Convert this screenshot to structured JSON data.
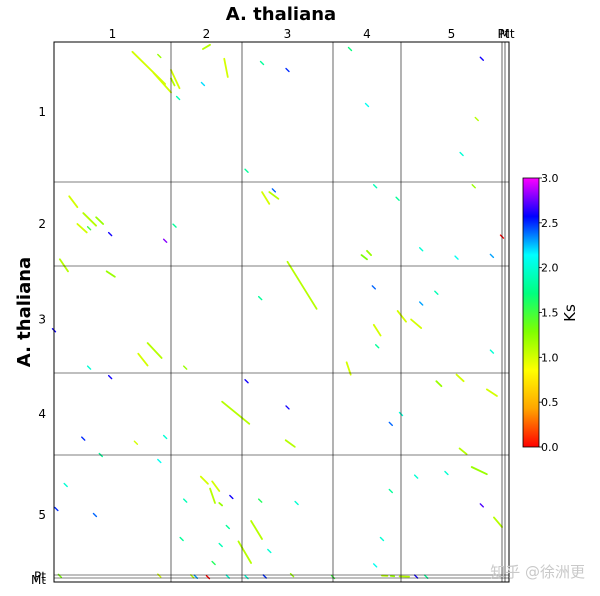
{
  "chart_data": {
    "type": "scatter",
    "title": "A. thaliana",
    "ylabel": "A. thaliana",
    "colorbar_label": "Ks",
    "x_chromosomes": [
      "1",
      "2",
      "3",
      "4",
      "5",
      "Pt",
      "Mt"
    ],
    "y_chromosomes": [
      "1",
      "2",
      "3",
      "4",
      "5",
      "Pt",
      "Mt"
    ],
    "colorbar_ticks": [
      "0.0",
      "0.5",
      "1.0",
      "1.5",
      "2.0",
      "2.5",
      "3.0"
    ],
    "colorbar_range": [
      0,
      3
    ],
    "colorbar_colors": [
      "#ff0000",
      "#ffa500",
      "#ffff00",
      "#7fff00",
      "#00ff7f",
      "#00ffff",
      "#0000ff",
      "#ff00ff"
    ],
    "segments": [
      {
        "x1": 0.67,
        "y1": 0.07,
        "x2": 0.95,
        "y2": 0.3,
        "ks": 1.0
      },
      {
        "x1": 0.85,
        "y1": 0.22,
        "x2": 1.0,
        "y2": 0.36,
        "ks": 1.0
      },
      {
        "x1": 1.0,
        "y1": 0.2,
        "x2": 1.12,
        "y2": 0.33,
        "ks": 1.0
      },
      {
        "x1": 1.0,
        "y1": 0.26,
        "x2": 1.05,
        "y2": 0.31,
        "ks": 1.1
      },
      {
        "x1": 1.45,
        "y1": 0.05,
        "x2": 1.55,
        "y2": 0.02,
        "ks": 1.1
      },
      {
        "x1": 1.75,
        "y1": 0.12,
        "x2": 1.8,
        "y2": 0.25,
        "ks": 1.0
      },
      {
        "x1": 0.13,
        "y1": 1.17,
        "x2": 0.2,
        "y2": 1.3,
        "ks": 1.0
      },
      {
        "x1": 0.25,
        "y1": 1.37,
        "x2": 0.36,
        "y2": 1.52,
        "ks": 1.1
      },
      {
        "x1": 0.2,
        "y1": 1.5,
        "x2": 0.28,
        "y2": 1.6,
        "ks": 1.0
      },
      {
        "x1": 0.36,
        "y1": 1.42,
        "x2": 0.42,
        "y2": 1.5,
        "ks": 1.2
      },
      {
        "x1": 2.22,
        "y1": 1.12,
        "x2": 2.3,
        "y2": 1.26,
        "ks": 1.0
      },
      {
        "x1": 2.3,
        "y1": 1.12,
        "x2": 2.4,
        "y2": 1.2,
        "ks": 1.1
      },
      {
        "x1": 0.05,
        "y1": 1.92,
        "x2": 0.12,
        "y2": 2.05,
        "ks": 1.1
      },
      {
        "x1": 0.45,
        "y1": 2.05,
        "x2": 0.52,
        "y2": 2.1,
        "ks": 1.2
      },
      {
        "x1": 2.5,
        "y1": 1.95,
        "x2": 2.82,
        "y2": 2.4,
        "ks": 1.1
      },
      {
        "x1": 3.42,
        "y1": 1.87,
        "x2": 3.5,
        "y2": 1.92,
        "ks": 1.3
      },
      {
        "x1": 3.5,
        "y1": 1.82,
        "x2": 3.56,
        "y2": 1.87,
        "ks": 1.2
      },
      {
        "x1": 3.95,
        "y1": 2.42,
        "x2": 4.05,
        "y2": 2.52,
        "ks": 1.0
      },
      {
        "x1": 4.1,
        "y1": 2.5,
        "x2": 4.2,
        "y2": 2.58,
        "ks": 1.0
      },
      {
        "x1": 3.6,
        "y1": 2.55,
        "x2": 3.7,
        "y2": 2.65,
        "ks": 1.0
      },
      {
        "x1": 0.72,
        "y1": 2.82,
        "x2": 0.8,
        "y2": 2.93,
        "ks": 1.0
      },
      {
        "x1": 0.8,
        "y1": 2.72,
        "x2": 0.92,
        "y2": 2.86,
        "ks": 1.1
      },
      {
        "x1": 3.2,
        "y1": 2.9,
        "x2": 3.26,
        "y2": 3.02,
        "ks": 1.0
      },
      {
        "x1": 4.35,
        "y1": 3.1,
        "x2": 4.4,
        "y2": 3.16,
        "ks": 1.2
      },
      {
        "x1": 4.55,
        "y1": 3.02,
        "x2": 4.62,
        "y2": 3.1,
        "ks": 1.0
      },
      {
        "x1": 4.85,
        "y1": 3.2,
        "x2": 4.95,
        "y2": 3.28,
        "ks": 1.0
      },
      {
        "x1": 1.72,
        "y1": 3.35,
        "x2": 2.08,
        "y2": 3.62,
        "ks": 1.1
      },
      {
        "x1": 2.48,
        "y1": 3.82,
        "x2": 2.58,
        "y2": 3.9,
        "ks": 1.1
      },
      {
        "x1": 4.58,
        "y1": 3.92,
        "x2": 4.65,
        "y2": 3.99,
        "ks": 1.1
      },
      {
        "x1": 4.7,
        "y1": 4.1,
        "x2": 4.85,
        "y2": 4.16,
        "ks": 1.2
      },
      {
        "x1": 4.92,
        "y1": 4.52,
        "x2": 5.0,
        "y2": 4.6,
        "ks": 1.1
      },
      {
        "x1": 1.42,
        "y1": 4.18,
        "x2": 1.52,
        "y2": 4.24,
        "ks": 1.0
      },
      {
        "x1": 1.55,
        "y1": 4.28,
        "x2": 1.62,
        "y2": 4.4,
        "ks": 1.1
      },
      {
        "x1": 1.58,
        "y1": 4.22,
        "x2": 1.68,
        "y2": 4.3,
        "ks": 1.0
      },
      {
        "x1": 1.68,
        "y1": 4.4,
        "x2": 1.72,
        "y2": 4.42,
        "ks": 1.2
      },
      {
        "x1": 2.1,
        "y1": 4.55,
        "x2": 2.22,
        "y2": 4.7,
        "ks": 1.1
      },
      {
        "x1": 1.95,
        "y1": 4.72,
        "x2": 2.1,
        "y2": 4.9,
        "ks": 1.1
      },
      {
        "x1": 3.72,
        "y1": 5.2,
        "x2": 3.8,
        "y2": 5.28,
        "ks": 1.1
      },
      {
        "x1": 3.85,
        "y1": 5.3,
        "x2": 3.9,
        "y2": 5.42,
        "ks": 1.2
      },
      {
        "x1": 3.98,
        "y1": 5.45,
        "x2": 4.08,
        "y2": 5.58,
        "ks": 1.1
      }
    ],
    "points": [
      {
        "x": 0.9,
        "y": 0.1,
        "ks": 1.2
      },
      {
        "x": 1.45,
        "y": 0.3,
        "ks": 2.2
      },
      {
        "x": 1.1,
        "y": 0.4,
        "ks": 1.9
      },
      {
        "x": 2.22,
        "y": 0.15,
        "ks": 1.8
      },
      {
        "x": 2.5,
        "y": 0.2,
        "ks": 2.5
      },
      {
        "x": 3.25,
        "y": 0.05,
        "ks": 1.7
      },
      {
        "x": 3.5,
        "y": 0.45,
        "ks": 2.1
      },
      {
        "x": 4.6,
        "y": 0.8,
        "ks": 2.0
      },
      {
        "x": 4.75,
        "y": 0.55,
        "ks": 1.1
      },
      {
        "x": 4.8,
        "y": 0.12,
        "ks": 2.6
      },
      {
        "x": 2.05,
        "y": 0.92,
        "ks": 1.8
      },
      {
        "x": 2.35,
        "y": 1.1,
        "ks": 2.4
      },
      {
        "x": 3.62,
        "y": 1.05,
        "ks": 1.9
      },
      {
        "x": 3.95,
        "y": 1.2,
        "ks": 1.8
      },
      {
        "x": 4.72,
        "y": 1.05,
        "ks": 1.2
      },
      {
        "x": 0.3,
        "y": 1.55,
        "ks": 1.5
      },
      {
        "x": 0.48,
        "y": 1.62,
        "ks": 2.6
      },
      {
        "x": 0.95,
        "y": 1.7,
        "ks": 2.8
      },
      {
        "x": 1.05,
        "y": 1.52,
        "ks": 1.8
      },
      {
        "x": 4.2,
        "y": 1.8,
        "ks": 2.0
      },
      {
        "x": 4.55,
        "y": 1.9,
        "ks": 2.1
      },
      {
        "x": 4.9,
        "y": 1.88,
        "ks": 2.3
      },
      {
        "x": 0.0,
        "y": 2.6,
        "ks": 2.6
      },
      {
        "x": 2.2,
        "y": 2.3,
        "ks": 1.8
      },
      {
        "x": 3.6,
        "y": 2.2,
        "ks": 2.4
      },
      {
        "x": 3.65,
        "y": 2.75,
        "ks": 1.8
      },
      {
        "x": 4.2,
        "y": 2.35,
        "ks": 2.3
      },
      {
        "x": 4.35,
        "y": 2.25,
        "ks": 1.9
      },
      {
        "x": 4.9,
        "y": 2.8,
        "ks": 2.0
      },
      {
        "x": 0.3,
        "y": 2.95,
        "ks": 2.0
      },
      {
        "x": 0.48,
        "y": 3.05,
        "ks": 2.6
      },
      {
        "x": 1.2,
        "y": 2.95,
        "ks": 1.2
      },
      {
        "x": 2.05,
        "y": 3.1,
        "ks": 2.6
      },
      {
        "x": 2.5,
        "y": 3.42,
        "ks": 2.6
      },
      {
        "x": 3.85,
        "y": 3.62,
        "ks": 2.4
      },
      {
        "x": 4.0,
        "y": 3.5,
        "ks": 2.0
      },
      {
        "x": 0.25,
        "y": 3.8,
        "ks": 2.5
      },
      {
        "x": 0.7,
        "y": 3.85,
        "ks": 1.0
      },
      {
        "x": 0.95,
        "y": 3.78,
        "ks": 2.0
      },
      {
        "x": 0.4,
        "y": 4.0,
        "ks": 1.8
      },
      {
        "x": 0.9,
        "y": 4.05,
        "ks": 2.1
      },
      {
        "x": 1.2,
        "y": 4.38,
        "ks": 1.9
      },
      {
        "x": 0.1,
        "y": 4.25,
        "ks": 2.0
      },
      {
        "x": 0.35,
        "y": 4.5,
        "ks": 2.4
      },
      {
        "x": 0.02,
        "y": 4.45,
        "ks": 2.5
      },
      {
        "x": 1.85,
        "y": 4.35,
        "ks": 2.6
      },
      {
        "x": 2.2,
        "y": 4.38,
        "ks": 1.6
      },
      {
        "x": 2.6,
        "y": 4.4,
        "ks": 2.0
      },
      {
        "x": 3.85,
        "y": 4.3,
        "ks": 1.8
      },
      {
        "x": 4.15,
        "y": 4.18,
        "ks": 2.0
      },
      {
        "x": 4.45,
        "y": 4.15,
        "ks": 2.0
      },
      {
        "x": 4.8,
        "y": 4.42,
        "ks": 2.7
      },
      {
        "x": 1.15,
        "y": 4.7,
        "ks": 1.8
      },
      {
        "x": 1.7,
        "y": 4.75,
        "ks": 1.9
      },
      {
        "x": 1.6,
        "y": 4.9,
        "ks": 1.6
      },
      {
        "x": 1.8,
        "y": 4.6,
        "ks": 1.8
      },
      {
        "x": 2.3,
        "y": 4.8,
        "ks": 2.0
      },
      {
        "x": 2.55,
        "y": 5.05,
        "ks": 1.2
      },
      {
        "x": 0.05,
        "y": 5.3,
        "ks": 1.3
      },
      {
        "x": 0.9,
        "y": 5.2,
        "ks": 1.0
      },
      {
        "x": 1.3,
        "y": 5.45,
        "ks": 1.1
      },
      {
        "x": 3.72,
        "y": 4.7,
        "ks": 2.0
      },
      {
        "x": 3.62,
        "y": 4.92,
        "ks": 2.1
      },
      {
        "x": 4.15,
        "y": 5.52,
        "ks": 2.6
      },
      {
        "x": 4.25,
        "y": 5.6,
        "ks": 1.8
      },
      {
        "x": 1.52,
        "y": 5.72,
        "ks": 0.0
      },
      {
        "x": 2.05,
        "y": 5.7,
        "ks": 2.0
      },
      {
        "x": 2.25,
        "y": 5.5,
        "ks": 2.5
      },
      {
        "x": 3.0,
        "y": 5.65,
        "ks": 1.5
      },
      {
        "x": 1.8,
        "y": 5.55,
        "ks": 2.0
      },
      {
        "x": 5.0,
        "y": 1.65,
        "ks": 0.0
      },
      {
        "x": 1.35,
        "y": 5.6,
        "ks": 2.3
      }
    ]
  },
  "watermark": "知乎 @徐洲更"
}
